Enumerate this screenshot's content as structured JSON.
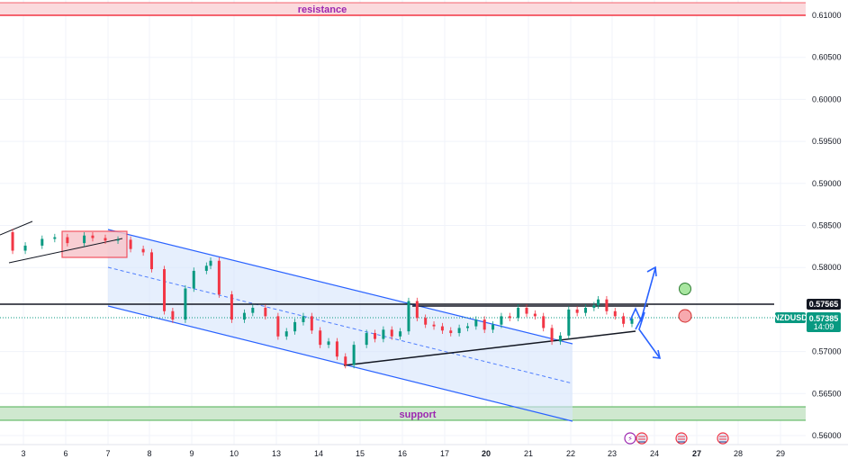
{
  "chart_data": {
    "type": "line",
    "symbol": "NZDUSD",
    "ylim": [
      0.5595,
      0.6114
    ],
    "y_ticks": [
      "0.61000",
      "0.60500",
      "0.60000",
      "0.59500",
      "0.59000",
      "0.58500",
      "0.58000",
      "0.57000",
      "0.56500",
      "0.56000"
    ],
    "x_ticks": [
      "3",
      "6",
      "7",
      "8",
      "9",
      "10",
      "13",
      "14",
      "15",
      "16",
      "17",
      "20",
      "21",
      "22",
      "23",
      "24",
      "27",
      "28",
      "29"
    ],
    "bold_x_ticks": [
      "20",
      "27"
    ],
    "series": [
      {
        "x": [
          0,
          0.3,
          0.6,
          1.0,
          1.3,
          1.6,
          2.0,
          2.2,
          2.5,
          2.8,
          3.1,
          3.4,
          3.6,
          3.9,
          4.1,
          4.4,
          4.6,
          4.9,
          5.0,
          5.2,
          5.5,
          5.8,
          6.0,
          6.3,
          6.6,
          6.8,
          7.0,
          7.2,
          7.4,
          7.6,
          7.8,
          8.0,
          8.2,
          8.4,
          8.7,
          8.9,
          9.1,
          9.3,
          9.5,
          9.7,
          9.9,
          10.1,
          10.3,
          10.5,
          10.7,
          10.9,
          11.1,
          11.3,
          11.5,
          11.7,
          11.9,
          12.1,
          12.3,
          12.5,
          12.7,
          12.9,
          13.1,
          13.3,
          13.5,
          13.7,
          13.9,
          14.1,
          14.2,
          14.4,
          14.6,
          14.8,
          15.0
        ],
        "y": [
          0.5842,
          0.582,
          0.5826,
          0.5834,
          0.5836,
          0.5829,
          0.5838,
          0.5835,
          0.5832,
          0.5833,
          0.5822,
          0.5818,
          0.5798,
          0.5748,
          0.5738,
          0.5775,
          0.5796,
          0.5802,
          0.5808,
          0.5768,
          0.5738,
          0.5746,
          0.5752,
          0.5742,
          0.5718,
          0.5724,
          0.5735,
          0.5742,
          0.5725,
          0.5708,
          0.5712,
          0.5694,
          0.5684,
          0.5708,
          0.5722,
          0.5715,
          0.5726,
          0.5718,
          0.5724,
          0.576,
          0.574,
          0.5732,
          0.573,
          0.5725,
          0.5722,
          0.5728,
          0.573,
          0.5738,
          0.5726,
          0.5732,
          0.5742,
          0.574,
          0.5752,
          0.5745,
          0.5742,
          0.5728,
          0.5712,
          0.5719,
          0.575,
          0.5746,
          0.5752,
          0.5755,
          0.5762,
          0.5748,
          0.5742,
          0.5733,
          0.5739
        ]
      }
    ],
    "current_price": "0.57385",
    "countdown": "14:09",
    "resistance_line": "0.57565",
    "annotations": {
      "resistance": "resistance",
      "support": "support"
    },
    "colors": {
      "up": "#089981",
      "down": "#f23645",
      "channel": "#2962ff",
      "channel_fill": "#d6e4fb",
      "resistance_fill": "#fbdadd",
      "resistance_line": "#f23645",
      "resistance_text": "#9c27b0",
      "support_fill": "#cfe8cf",
      "support_line": "#4caf50",
      "support_text": "#9c27b0",
      "price_tag": "#089981",
      "level_tag": "#131722"
    }
  }
}
